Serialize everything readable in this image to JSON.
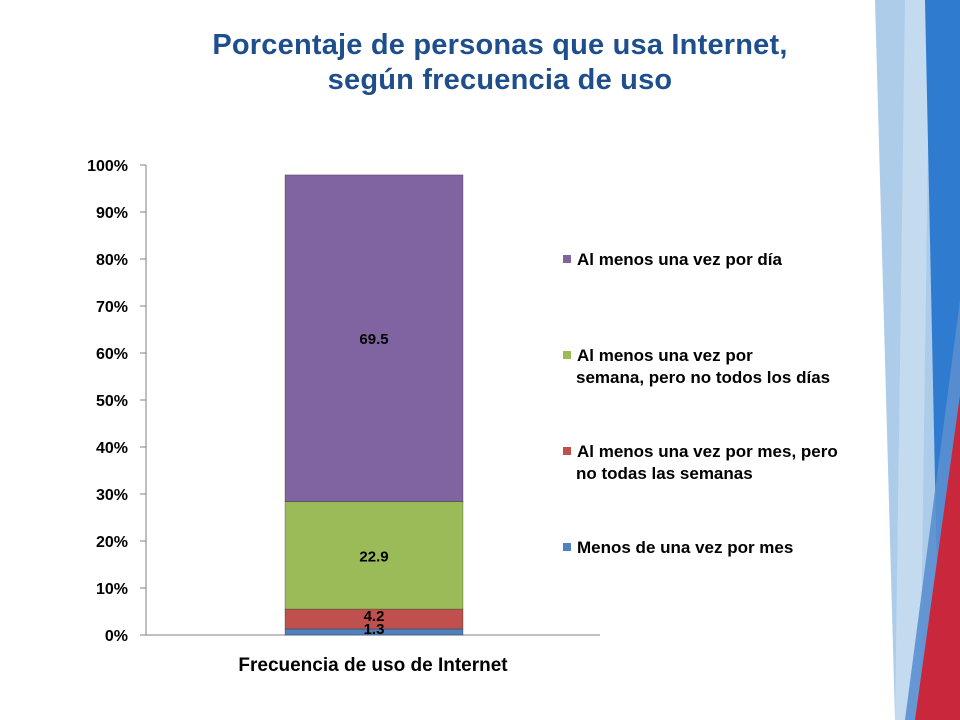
{
  "slide": {
    "title_line1": "Porcentaje de personas que usa Internet,",
    "title_line2": "según frecuencia de uso"
  },
  "colors": {
    "title": "#1f4e8c",
    "deco_light_blue": "#9dc3e6",
    "deco_blue": "#2e7bcf",
    "deco_red": "#c9283c"
  },
  "chart_data": {
    "type": "bar",
    "stacked": true,
    "percent_axis": true,
    "categories": [
      ""
    ],
    "xlabel": "Frecuencia de uso de Internet",
    "ylabel": "",
    "ylim": [
      0,
      100
    ],
    "yticks": [
      "0%",
      "10%",
      "20%",
      "30%",
      "40%",
      "50%",
      "60%",
      "70%",
      "80%",
      "90%",
      "100%"
    ],
    "grid": false,
    "legend_position": "right",
    "series": [
      {
        "name": "Menos de una vez por mes",
        "values": [
          1.3
        ],
        "label": "1.3",
        "color": "#4f81bd"
      },
      {
        "name": "Al menos una vez por mes, pero no todas las semanas",
        "legend_lines": [
          "Al menos una vez por mes, pero",
          "no todas las semanas"
        ],
        "values": [
          4.2
        ],
        "label": "4.2",
        "color": "#c0504d"
      },
      {
        "name": "Al menos una vez por semana, pero no todos los días",
        "legend_lines": [
          "Al menos una vez por",
          "semana, pero no todos los días"
        ],
        "values": [
          22.9
        ],
        "label": "22.9",
        "color": "#9bbb59"
      },
      {
        "name": "Al menos una vez por día",
        "legend_lines": [
          "Al menos una vez por día"
        ],
        "values": [
          69.5
        ],
        "label": "69.5",
        "color": "#8064a2"
      }
    ]
  }
}
